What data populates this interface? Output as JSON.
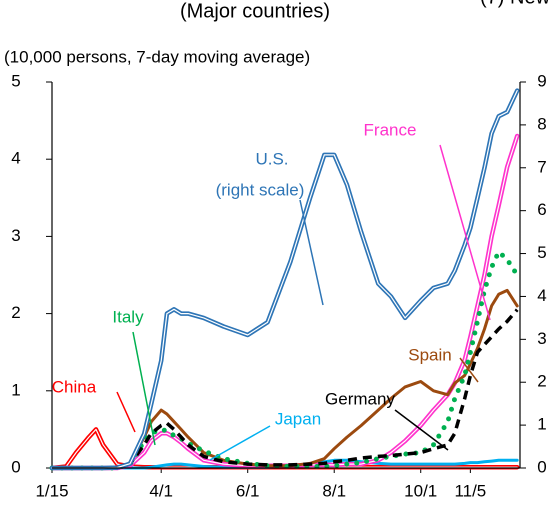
{
  "chart_data": {
    "type": "line",
    "title": "(Major countries)",
    "clipped_title": "(7) New",
    "y_label": "(10,000 persons, 7-day moving average)",
    "x": [
      "1/15",
      "1/25",
      "2/1",
      "2/10",
      "2/15",
      "2/20",
      "3/1",
      "3/10",
      "3/20",
      "3/25",
      "4/1",
      "4/5",
      "4/10",
      "4/15",
      "4/20",
      "5/1",
      "5/15",
      "6/1",
      "6/15",
      "7/1",
      "7/15",
      "7/25",
      "8/1",
      "8/10",
      "8/20",
      "9/1",
      "9/10",
      "9/20",
      "10/1",
      "10/10",
      "10/20",
      "10/25",
      "11/1",
      "11/5",
      "11/10",
      "11/15",
      "11/20",
      "11/25",
      "12/1",
      "12/8"
    ],
    "xlim": [
      "1/15",
      "12/10"
    ],
    "xticks": [
      "1/15",
      "4/1",
      "6/1",
      "8/1",
      "10/1",
      "11/5"
    ],
    "ylim": [
      0,
      5
    ],
    "yticks": [
      0,
      1,
      2,
      3,
      4,
      5
    ],
    "y2lim": [
      0,
      9
    ],
    "y2ticks": [
      0,
      1,
      2,
      3,
      4,
      5,
      6,
      7,
      8,
      9
    ],
    "series": [
      {
        "name": "China",
        "color": "#ff0000",
        "style": "double",
        "values": [
          0,
          0.02,
          0.2,
          0.4,
          0.5,
          0.3,
          0.05,
          0.02,
          0.01,
          0.01,
          0.01,
          0.01,
          0.01,
          0.01,
          0.01,
          0.01,
          0.01,
          0.01,
          0.01,
          0.01,
          0.01,
          0.01,
          0.01,
          0.01,
          0.01,
          0.01,
          0.01,
          0.01,
          0.01,
          0.01,
          0.01,
          0.01,
          0.01,
          0.01,
          0.01,
          0.01,
          0.01,
          0.01,
          0.01,
          0.01
        ]
      },
      {
        "name": "Japan",
        "color": "#00b0f0",
        "style": "solid",
        "values": [
          0,
          0,
          0,
          0,
          0,
          0,
          0,
          0,
          0,
          0.01,
          0.03,
          0.04,
          0.05,
          0.05,
          0.04,
          0.02,
          0.01,
          0.01,
          0.01,
          0.02,
          0.05,
          0.08,
          0.1,
          0.1,
          0.08,
          0.06,
          0.05,
          0.05,
          0.05,
          0.05,
          0.05,
          0.05,
          0.06,
          0.07,
          0.07,
          0.08,
          0.09,
          0.1,
          0.1,
          0.1
        ]
      },
      {
        "name": "France",
        "color": "#ff33cc",
        "style": "double",
        "values": [
          0,
          0,
          0,
          0,
          0,
          0,
          0,
          0.03,
          0.2,
          0.35,
          0.45,
          0.45,
          0.4,
          0.33,
          0.25,
          0.1,
          0.05,
          0.03,
          0.03,
          0.03,
          0.04,
          0.04,
          0.04,
          0.05,
          0.05,
          0.1,
          0.2,
          0.35,
          0.55,
          0.75,
          0.95,
          1.1,
          1.4,
          1.7,
          2.1,
          2.5,
          3.0,
          3.4,
          3.9,
          4.3
        ]
      },
      {
        "name": "Spain",
        "color": "#9c4a0f",
        "style": "solid",
        "values": [
          0,
          0,
          0,
          0,
          0,
          0,
          0,
          0.05,
          0.4,
          0.6,
          0.75,
          0.7,
          0.6,
          0.5,
          0.4,
          0.2,
          0.1,
          0.05,
          0.03,
          0.03,
          0.06,
          0.12,
          0.25,
          0.4,
          0.55,
          0.75,
          0.9,
          1.05,
          1.12,
          1.0,
          0.95,
          1.1,
          1.2,
          1.35,
          1.55,
          1.8,
          2.1,
          2.25,
          2.3,
          2.1
        ]
      },
      {
        "name": "Italy",
        "color": "#00b050",
        "style": "dotted",
        "values": [
          0,
          0,
          0,
          0,
          0,
          0,
          0,
          0.05,
          0.35,
          0.45,
          0.5,
          0.48,
          0.42,
          0.38,
          0.32,
          0.22,
          0.12,
          0.06,
          0.03,
          0.02,
          0.02,
          0.02,
          0.03,
          0.05,
          0.07,
          0.12,
          0.15,
          0.18,
          0.2,
          0.3,
          0.6,
          0.9,
          1.2,
          1.5,
          1.9,
          2.3,
          2.6,
          2.8,
          2.7,
          2.5
        ]
      },
      {
        "name": "Germany",
        "color": "#000000",
        "style": "dashed",
        "values": [
          0,
          0,
          0,
          0,
          0,
          0,
          0,
          0.05,
          0.3,
          0.45,
          0.55,
          0.58,
          0.5,
          0.4,
          0.3,
          0.15,
          0.08,
          0.05,
          0.04,
          0.04,
          0.05,
          0.06,
          0.08,
          0.1,
          0.13,
          0.15,
          0.16,
          0.18,
          0.2,
          0.25,
          0.3,
          0.45,
          0.9,
          1.2,
          1.5,
          1.6,
          1.7,
          1.8,
          1.9,
          2.05
        ]
      },
      {
        "name": "U.S.",
        "color": "#2e75b6",
        "style": "double",
        "axis": "y2",
        "values": [
          0,
          0,
          0,
          0,
          0,
          0,
          0.01,
          0.1,
          0.8,
          1.5,
          2.5,
          3.6,
          3.7,
          3.6,
          3.6,
          3.5,
          3.3,
          3.1,
          3.4,
          4.8,
          6.3,
          7.3,
          7.3,
          6.6,
          5.5,
          4.3,
          4.0,
          3.5,
          3.9,
          4.2,
          4.3,
          4.6,
          5.2,
          5.6,
          6.3,
          7.0,
          7.8,
          8.2,
          8.3,
          8.8
        ]
      }
    ],
    "annotations": [
      "U.S.",
      "(right scale)",
      "France",
      "Italy",
      "Spain",
      "China",
      "Germany",
      "Japan"
    ]
  }
}
